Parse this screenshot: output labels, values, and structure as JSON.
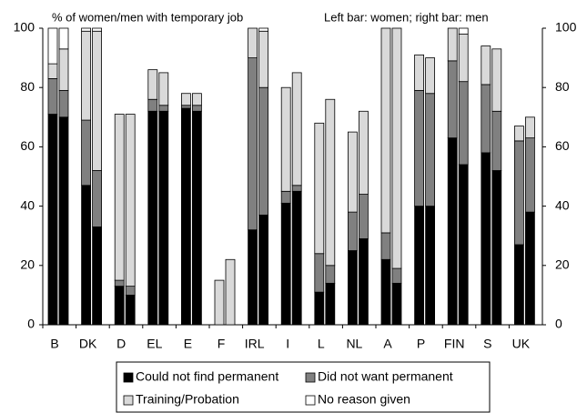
{
  "chart_data": {
    "type": "grouped-stacked-bar",
    "annotations": [
      "% of women/men with temporary job",
      "Left bar: women; right bar: men"
    ],
    "categories": [
      "B",
      "DK",
      "D",
      "EL",
      "E",
      "F",
      "IRL",
      "I",
      "L",
      "NL",
      "A",
      "P",
      "FIN",
      "S",
      "UK"
    ],
    "series": [
      {
        "name": "Could not find permanent",
        "color": "#000000",
        "women": [
          71,
          47,
          13,
          72,
          73,
          0,
          32,
          41,
          11,
          25,
          22,
          40,
          63,
          58,
          27
        ],
        "men": [
          70,
          33,
          10,
          72,
          72,
          0,
          37,
          45,
          14,
          29,
          14,
          40,
          54,
          52,
          38
        ]
      },
      {
        "name": "Did not want permanent",
        "color": "#808080",
        "women": [
          12,
          22,
          2,
          4,
          1,
          0,
          58,
          4,
          13,
          13,
          9,
          39,
          26,
          23,
          35
        ],
        "men": [
          9,
          19,
          3,
          2,
          2,
          0,
          43,
          2,
          6,
          15,
          5,
          38,
          28,
          20,
          25
        ]
      },
      {
        "name": "Training/Probation",
        "color": "#d9d9d9",
        "women": [
          5,
          30,
          56,
          10,
          4,
          15,
          10,
          35,
          44,
          27,
          69,
          12,
          11,
          13,
          5
        ],
        "men": [
          14,
          47,
          58,
          11,
          4,
          22,
          19,
          38,
          56,
          28,
          81,
          12,
          16,
          21,
          7
        ]
      },
      {
        "name": "No reason given",
        "color": "#ffffff",
        "women": [
          12,
          1,
          0,
          0,
          0,
          0,
          0,
          0,
          0,
          0,
          0,
          0,
          0,
          0,
          0
        ],
        "men": [
          7,
          1,
          0,
          0,
          0,
          0,
          1,
          0,
          0,
          0,
          0,
          0,
          2,
          0,
          0
        ]
      }
    ],
    "ylim": [
      0,
      100
    ],
    "yticks": [
      0,
      20,
      40,
      60,
      80,
      100
    ],
    "y2lim": [
      0,
      100
    ],
    "y2ticks": [
      0,
      20,
      40,
      60,
      80,
      100
    ],
    "legend": "bottom"
  }
}
